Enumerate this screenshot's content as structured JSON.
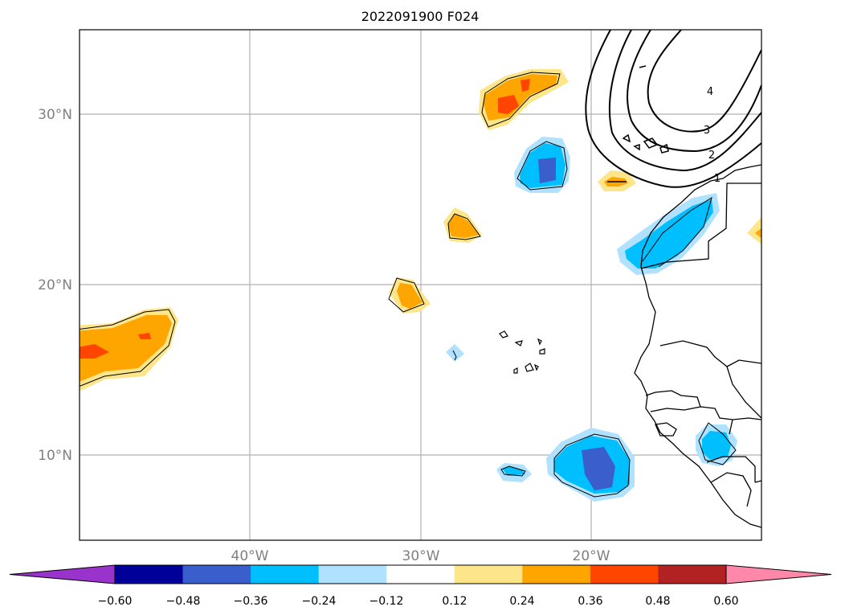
{
  "title": "2022091900 F024",
  "map": {
    "lat_labels": [
      "30°N",
      "20°N",
      "10°N"
    ],
    "lon_labels": [
      "40°W",
      "30°W",
      "20°W"
    ],
    "contour_labels": [
      "1",
      "2",
      "3",
      "4"
    ]
  },
  "colorbar": {
    "ticks": [
      "−0.60",
      "−0.48",
      "−0.36",
      "−0.24",
      "−0.12",
      "0.12",
      "0.24",
      "0.36",
      "0.48",
      "0.60"
    ],
    "colors": [
      "#9933cc",
      "#000099",
      "#3a5fcd",
      "#00bfff",
      "#b0e2ff",
      "#ffffff",
      "#fde68a",
      "#ffa500",
      "#ff4500",
      "#b22222",
      "#ff88aa"
    ]
  },
  "anomaly_colors": {
    "light_yellow": "#fde68a",
    "orange": "#ffa500",
    "red_orange": "#ff4500",
    "light_blue": "#b0e2ff",
    "deep_sky_blue": "#00bfff",
    "royal_blue": "#3a5fcd"
  }
}
